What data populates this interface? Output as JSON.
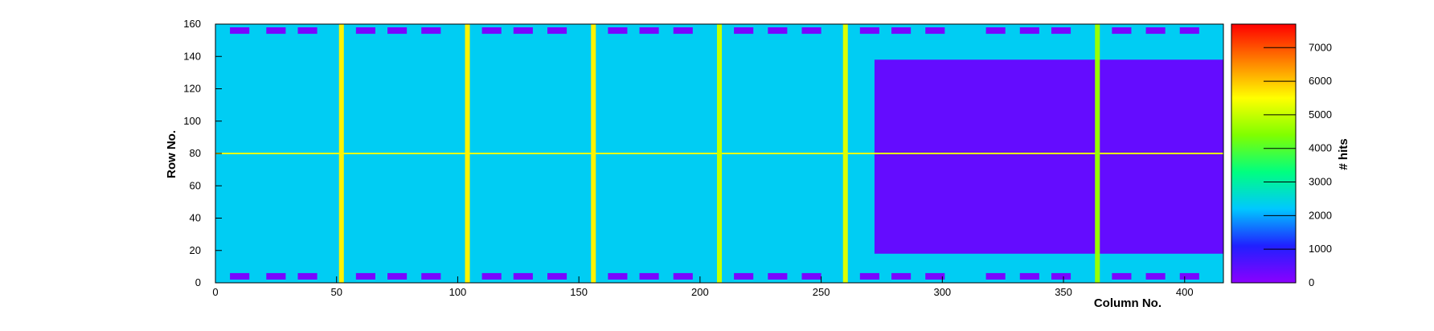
{
  "chart_data": {
    "type": "heatmap",
    "title": "",
    "xlabel": "Column No.",
    "ylabel": "Row No.",
    "zlabel": "# hits",
    "xlim": [
      0,
      416
    ],
    "ylim": [
      0,
      160
    ],
    "zlim": [
      0,
      7700
    ],
    "x_ticks": [
      0,
      50,
      100,
      150,
      200,
      250,
      300,
      350,
      400
    ],
    "y_ticks": [
      0,
      20,
      40,
      60,
      80,
      100,
      120,
      140,
      160
    ],
    "z_ticks": [
      0,
      1000,
      2000,
      3000,
      4000,
      5000,
      6000,
      7000
    ],
    "grid": false,
    "colormap": [
      "#8b00ff",
      "#2020ff",
      "#00c8ff",
      "#00ff80",
      "#80ff00",
      "#ffff00",
      "#ff8000",
      "#ff0000"
    ],
    "background_level": 2300,
    "hot_columns": [
      {
        "x": 52,
        "value": 5600
      },
      {
        "x": 104,
        "value": 5600
      },
      {
        "x": 156,
        "value": 5600
      },
      {
        "x": 208,
        "value": 5000
      },
      {
        "x": 260,
        "value": 5200
      },
      {
        "x": 364,
        "value": 4600
      }
    ],
    "hot_row": {
      "y": 80,
      "value": 5300
    },
    "dense_region": {
      "x_range": [
        272,
        416
      ],
      "y_range": [
        18,
        138
      ],
      "value": 400
    },
    "pads": {
      "top_y": 156,
      "bottom_y": 4,
      "value": 200,
      "x_centers": [
        10,
        25,
        38,
        62,
        75,
        89,
        114,
        127,
        141,
        166,
        179,
        193,
        218,
        232,
        246,
        270,
        283,
        297,
        322,
        336,
        349,
        374,
        388,
        402
      ]
    }
  }
}
